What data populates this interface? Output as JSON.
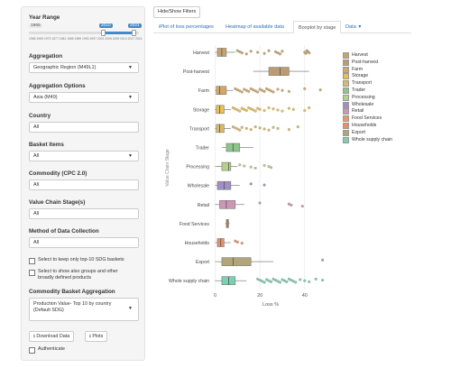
{
  "sidebar": {
    "year_range": {
      "label": "Year Range",
      "min": "1965",
      "max": "2021",
      "from": "2010",
      "to": "2021",
      "ticks": [
        "1965",
        "1969",
        "1973",
        "1977",
        "1981",
        "1985",
        "1989",
        "1993",
        "1997",
        "2001",
        "2005",
        "2009",
        "2013",
        "2017",
        "2021"
      ]
    },
    "aggregation": {
      "label": "Aggregation",
      "value": "Geographic Region (M49L1)"
    },
    "aggregation_options": {
      "label": "Aggregation Options",
      "value": "Asia (M49)"
    },
    "country": {
      "label": "Country",
      "value": "All"
    },
    "basket_items": {
      "label": "Basket Items",
      "value": "All"
    },
    "commodity": {
      "label": "Commodity (CPC 2.0)",
      "value": "All"
    },
    "value_chain": {
      "label": "Value Chain Stage(s)",
      "value": "All"
    },
    "method": {
      "label": "Method of Data Collection",
      "value": "All"
    },
    "check_top10": "Select to keep only top-10 SDG baskets",
    "check_groups": "Select to show also groups and other broadly defined products",
    "basket_agg": {
      "label": "Commodity Basket Aggregation",
      "value": "Production Value- Top 10 by country (Default SDG)"
    },
    "download_label": "Download Data",
    "plots_label": "Plots",
    "authenticate": "Authenticate"
  },
  "toolbar": {
    "hide_show": "Hide/Show Filters"
  },
  "tabs": [
    "iPlot of loss percentages",
    "Heatmap of available data",
    "Boxplot by stage",
    "Data"
  ],
  "icons": {
    "download": "download-icon",
    "caret": "caret-down-icon"
  },
  "chart_data": {
    "type": "boxplot",
    "orientation": "horizontal",
    "xlabel": "Loss %",
    "ylabel": "Value Chain Stage",
    "xlim": [
      -1,
      55
    ],
    "xticks": [
      0,
      20,
      40
    ],
    "grid": true,
    "legend_position": "right",
    "categories": [
      "Harvest",
      "Post-harvest",
      "Farm",
      "Storage",
      "Transport",
      "Trader",
      "Processing",
      "Wholesale",
      "Retail",
      "Food Services",
      "Households",
      "Export",
      "Whole supply chain"
    ],
    "series": [
      {
        "name": "Harvest",
        "color": "#c7a46e",
        "min": 0,
        "q1": 1,
        "median": 3,
        "q3": 5,
        "max": 9,
        "outliers": [
          10,
          11,
          12,
          14,
          16,
          19,
          22,
          24,
          27,
          28,
          29,
          30,
          40,
          40.5,
          41,
          41.5,
          42
        ]
      },
      {
        "name": "Post-harvest",
        "color": "#bc9b72",
        "min": 17,
        "q1": 24,
        "median": 29,
        "q3": 33,
        "max": 42,
        "outliers": []
      },
      {
        "name": "Farm",
        "color": "#d1a867",
        "min": 0,
        "q1": 0.5,
        "median": 2,
        "q3": 5,
        "max": 8,
        "outliers": [
          9,
          10,
          11,
          12,
          13,
          14,
          15,
          16,
          17,
          18,
          19,
          20,
          21,
          22,
          23,
          24,
          25,
          26,
          28,
          30,
          33,
          40,
          47
        ]
      },
      {
        "name": "Storage",
        "color": "#e9bf52",
        "min": 0,
        "q1": 0.5,
        "median": 2,
        "q3": 4,
        "max": 7,
        "outliers": [
          8,
          9,
          10,
          11,
          12,
          13,
          14,
          15,
          16,
          17,
          18,
          19,
          20,
          22,
          24,
          26,
          28,
          30,
          33,
          35,
          40,
          42
        ]
      },
      {
        "name": "Transport",
        "color": "#d9b96a",
        "min": 0,
        "q1": 0.5,
        "median": 2,
        "q3": 4,
        "max": 7,
        "outliers": [
          8,
          9,
          10,
          11,
          12,
          14,
          16,
          18,
          20,
          22,
          24,
          26,
          28,
          33,
          37
        ]
      },
      {
        "name": "Trader",
        "color": "#8cc48a",
        "min": 3,
        "q1": 5,
        "median": 8,
        "q3": 11,
        "max": 17,
        "outliers": []
      },
      {
        "name": "Processing",
        "color": "#b6cf8a",
        "min": 0,
        "q1": 3,
        "median": 6,
        "q3": 7,
        "max": 10,
        "outliers": [
          11,
          13,
          16,
          18,
          22,
          24,
          25
        ]
      },
      {
        "name": "Wholesale",
        "color": "#9e8fc4",
        "min": 0,
        "q1": 1,
        "median": 4,
        "q3": 7,
        "max": 11,
        "outliers": [
          16,
          22
        ]
      },
      {
        "name": "Retail",
        "color": "#cb97b4",
        "min": 0,
        "q1": 2,
        "median": 5,
        "q3": 9,
        "max": 13,
        "outliers": [
          20,
          33,
          34,
          39
        ]
      },
      {
        "name": "Food Services",
        "color": "#e99a5a",
        "min": 4.5,
        "q1": 5,
        "median": 5.5,
        "q3": 6,
        "max": 6.5,
        "outliers": []
      },
      {
        "name": "Households",
        "color": "#e88f6b",
        "min": 0,
        "q1": 1,
        "median": 2.5,
        "q3": 4,
        "max": 7,
        "outliers": [
          9,
          10,
          12
        ]
      },
      {
        "name": "Export",
        "color": "#b3a57a",
        "min": 0,
        "q1": 3,
        "median": 8,
        "q3": 16,
        "max": 26,
        "outliers": [
          48
        ]
      },
      {
        "name": "Whole supply chain",
        "color": "#7dcfb2",
        "min": 0,
        "q1": 3,
        "median": 6,
        "q3": 9,
        "max": 14,
        "outliers": [
          19,
          20,
          21,
          22,
          23,
          24,
          25,
          26,
          27,
          28,
          29,
          30,
          31,
          32,
          33,
          34,
          35,
          36,
          38,
          40,
          42,
          45,
          48
        ]
      }
    ]
  }
}
